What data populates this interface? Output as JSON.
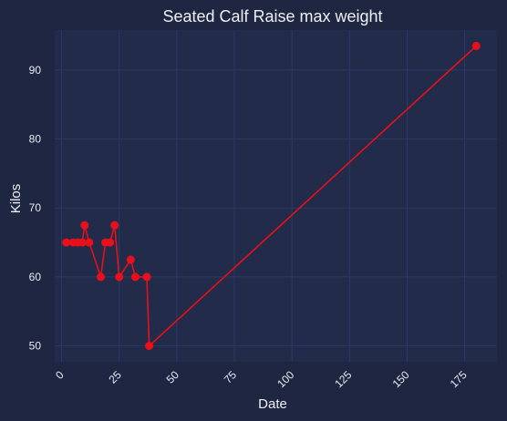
{
  "chart_data": {
    "type": "line",
    "title": "Seated Calf Raise max weight",
    "xlabel": "Date",
    "ylabel": "Kilos",
    "xlim": [
      -3,
      189
    ],
    "ylim": [
      47.7,
      95.8
    ],
    "xticks": [
      0,
      25,
      50,
      75,
      100,
      125,
      150,
      175
    ],
    "yticks": [
      50,
      60,
      70,
      80,
      90
    ],
    "grid": true,
    "colors": {
      "background": "#1e2641",
      "plot_background": "#222b49",
      "grid": "#2c3a66",
      "line": "#e8101a",
      "text": "#eef0f7"
    },
    "series": [
      {
        "x": [
          2,
          5,
          7,
          9,
          10,
          12,
          17,
          19,
          21,
          23,
          25,
          30,
          32,
          37,
          38,
          180
        ],
        "y": [
          65,
          65,
          65,
          65,
          67.5,
          65,
          60,
          65,
          65,
          67.5,
          60,
          62.5,
          60,
          60,
          50,
          93.5
        ]
      }
    ]
  }
}
